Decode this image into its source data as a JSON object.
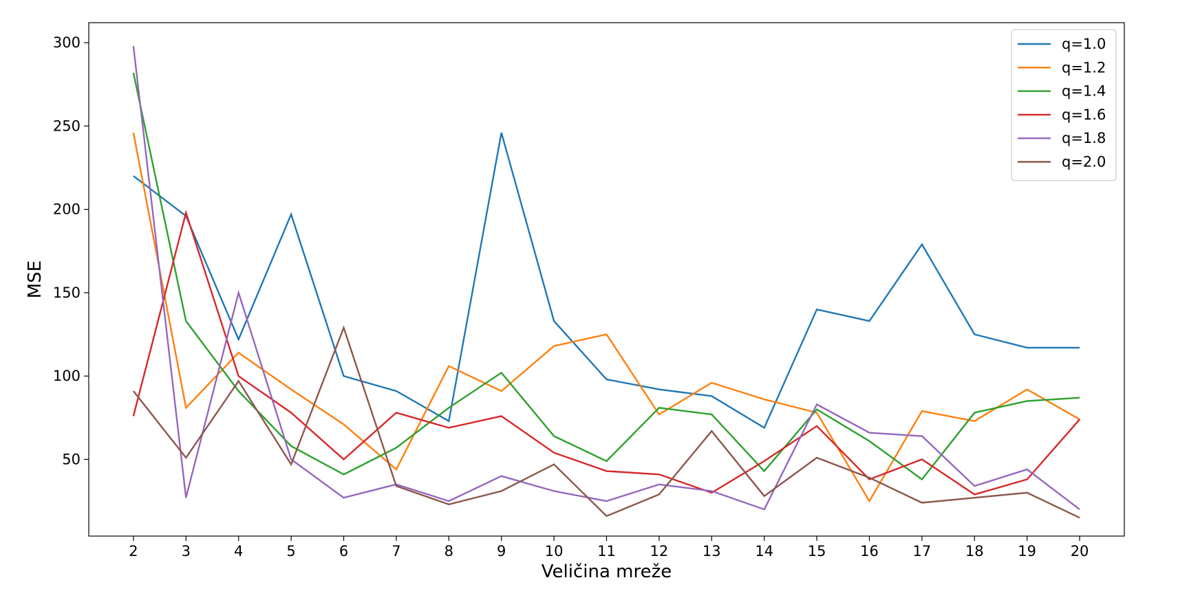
{
  "chart_data": {
    "type": "line",
    "title": "",
    "xlabel": "Veličina mreže",
    "ylabel": "MSE",
    "x": [
      2,
      3,
      4,
      5,
      6,
      7,
      8,
      9,
      10,
      11,
      12,
      13,
      14,
      15,
      16,
      17,
      18,
      19,
      20
    ],
    "xlim": [
      1.15,
      20.85
    ],
    "ylim": [
      4,
      312
    ],
    "yticks": [
      50,
      100,
      150,
      200,
      250,
      300
    ],
    "grid": false,
    "legend_position": "top-right",
    "series": [
      {
        "name": "q=1.0",
        "color": "#1f77b4",
        "values": [
          220,
          196,
          122,
          197,
          100,
          91,
          73,
          246,
          133,
          98,
          92,
          88,
          69,
          140,
          133,
          179,
          125,
          117,
          117
        ]
      },
      {
        "name": "q=1.2",
        "color": "#ff7f0e",
        "values": [
          246,
          81,
          114,
          92,
          71,
          44,
          106,
          91,
          118,
          125,
          77,
          96,
          86,
          78,
          25,
          79,
          73,
          92,
          74
        ]
      },
      {
        "name": "q=1.4",
        "color": "#2ca02c",
        "values": [
          282,
          133,
          91,
          58,
          41,
          57,
          81,
          102,
          64,
          49,
          81,
          77,
          43,
          80,
          61,
          38,
          78,
          85,
          87
        ]
      },
      {
        "name": "q=1.6",
        "color": "#d62728",
        "values": [
          76,
          198,
          100,
          78,
          50,
          78,
          69,
          76,
          54,
          43,
          41,
          30,
          49,
          70,
          38,
          50,
          29,
          38,
          74
        ]
      },
      {
        "name": "q=1.8",
        "color": "#9467bd",
        "values": [
          298,
          27,
          150,
          50,
          27,
          35,
          25,
          40,
          31,
          25,
          35,
          31,
          20,
          83,
          66,
          64,
          34,
          44,
          20
        ]
      },
      {
        "name": "q=2.0",
        "color": "#8c564b",
        "values": [
          91,
          51,
          97,
          47,
          129,
          34,
          23,
          31,
          47,
          16,
          29,
          67,
          28,
          51,
          39,
          24,
          27,
          30,
          15
        ]
      }
    ]
  }
}
